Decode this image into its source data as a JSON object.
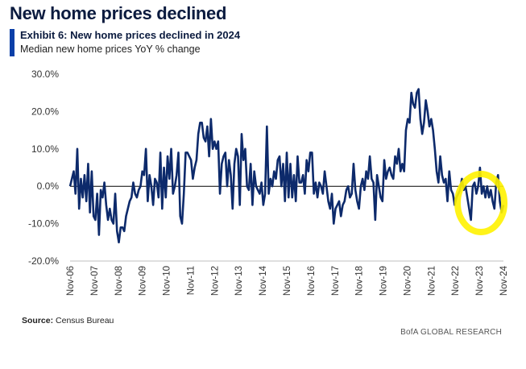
{
  "header": {
    "headline": "New home prices declined",
    "exhibit": "Exhibit 6: New home prices declined in 2024",
    "subtitle": "Median new home prices YoY % change"
  },
  "footer": {
    "source_label": "Source:",
    "source_text": "Census Bureau",
    "credit": "BofA GLOBAL RESEARCH"
  },
  "colors": {
    "line": "#0d2a6b",
    "headline": "#0b1b3f",
    "accent_bar": "#0a3fa8",
    "highlight": "#fff200"
  },
  "chart_data": {
    "type": "line",
    "ylim": [
      -20,
      30
    ],
    "y_ticks": [
      "30.0%",
      "20.0%",
      "10.0%",
      "0.0%",
      "-10.0%",
      "-20.0%"
    ],
    "y_tick_values": [
      30,
      20,
      10,
      0,
      -10,
      -20
    ],
    "x_ticks": [
      "Nov-06",
      "Nov-07",
      "Nov-08",
      "Nov-09",
      "Nov-10",
      "Nov-11",
      "Nov-12",
      "Nov-13",
      "Nov-14",
      "Nov-15",
      "Nov-16",
      "Nov-17",
      "Nov-18",
      "Nov-19",
      "Nov-20",
      "Nov-21",
      "Nov-22",
      "Nov-23",
      "Nov-24"
    ],
    "x_start": "Nov-06",
    "x_end": "Nov-24",
    "grid": false,
    "zero_line": true,
    "annotation": "yellow highlight circle around Nov-22 to Nov-24 values",
    "series": [
      {
        "values": [
          0,
          2,
          4,
          -2,
          10,
          -6,
          2,
          -3,
          3,
          -4,
          6,
          -7,
          4,
          -8,
          -9,
          -2,
          -13,
          -1,
          -3,
          1,
          -5,
          -9,
          -6,
          -9,
          -10,
          -2,
          -12,
          -15,
          -11,
          -11,
          -12,
          -8,
          -6,
          -4,
          -3,
          1,
          -2,
          -3,
          -1,
          0,
          4,
          3,
          10,
          -4,
          3,
          0,
          -5,
          2,
          1,
          -3,
          9,
          -6,
          5,
          -3,
          8,
          2,
          10,
          -2,
          0,
          3,
          9,
          -8,
          -10,
          -2,
          9,
          9,
          8,
          7,
          2,
          5,
          7,
          14,
          17,
          17,
          13,
          12,
          16,
          8,
          18,
          10,
          12,
          10,
          12,
          -2,
          6,
          8,
          9,
          0,
          7,
          3,
          -6,
          6,
          10,
          8,
          -5,
          14,
          7,
          10,
          0,
          -1,
          6,
          -5,
          4,
          0,
          -1,
          -2,
          1,
          -5,
          -2,
          16,
          -2,
          2,
          0,
          4,
          2,
          7,
          8,
          0,
          6,
          -4,
          9,
          -3,
          6,
          -3,
          3,
          -4,
          8,
          1,
          1,
          3,
          -2,
          7,
          4,
          9,
          9,
          -2,
          1,
          -3,
          1,
          0,
          -2,
          4,
          0,
          -4,
          -6,
          -2,
          -10,
          -6,
          -5,
          -4,
          -8,
          -5,
          -4,
          -1,
          0,
          -3,
          -2,
          6,
          -1,
          -4,
          -6,
          0,
          2,
          -1,
          4,
          2,
          8,
          2,
          1,
          -9,
          3,
          0,
          -3,
          -4,
          7,
          2,
          4,
          5,
          3,
          2,
          8,
          6,
          10,
          4,
          6,
          4,
          15,
          18,
          17,
          25,
          22,
          21,
          25,
          26,
          18,
          14,
          17,
          23,
          20,
          16,
          18,
          15,
          10,
          4,
          1,
          8,
          3,
          1,
          2,
          -4,
          4,
          -1,
          -2,
          -5,
          -3,
          -2,
          -1,
          2,
          -1,
          0,
          -3,
          -6,
          -9,
          0,
          1,
          -2,
          0,
          5,
          -2,
          0,
          -3,
          0,
          -3,
          -1,
          -4,
          -6,
          1,
          3,
          -4,
          -7,
          -5
        ]
      }
    ]
  }
}
